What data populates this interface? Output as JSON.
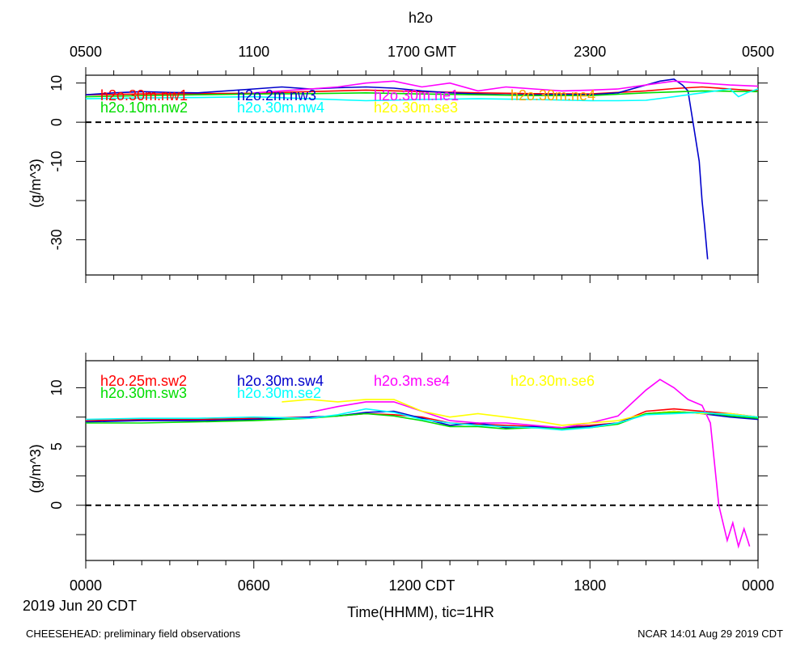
{
  "figure": {
    "title": "h2o",
    "top_axis_ticks": [
      "0500",
      "1100",
      "1700 GMT",
      "2300",
      "0500"
    ],
    "bottom_axis_ticks": [
      "0000",
      "0600",
      "1200 CDT",
      "1800",
      "0000"
    ],
    "date_label": "2019 Jun 20 CDT",
    "xlabel": "Time(HHMM), tic=1HR",
    "footer_left": "CHEESEHEAD: preliminary field observations",
    "footer_right": "NCAR 14:01 Aug 29 2019 CDT"
  },
  "colors": {
    "red": "#ff0000",
    "blue": "#0000cc",
    "magenta": "#ff00ff",
    "orange": "#ffa500",
    "green": "#00dd00",
    "cyan": "#00ffff",
    "yellow": "#ffff00"
  },
  "chart_data": [
    {
      "type": "line",
      "title": "h2o",
      "xlabel": "Time(HHMM), tic=1HR",
      "ylabel": "(g/m^3)",
      "xlim": [
        0,
        24
      ],
      "ylim": [
        -39,
        12
      ],
      "yticks": [
        10,
        0,
        -10,
        -30
      ],
      "ytick_labels": [
        "10",
        "0",
        "-10",
        "-30"
      ],
      "reference_line": 0,
      "series": [
        {
          "name": "h2o.30m.nw1",
          "color": "#ff0000",
          "x": [
            0,
            2,
            4,
            6,
            8,
            10,
            12,
            14,
            16,
            18,
            19,
            20,
            21,
            22,
            23,
            24
          ],
          "y": [
            7.0,
            7.2,
            7.3,
            7.4,
            7.8,
            8.2,
            7.8,
            7.5,
            7.3,
            7.2,
            7.6,
            8.0,
            8.6,
            9.0,
            8.5,
            8.0
          ]
        },
        {
          "name": "h2o.2m.nw3",
          "color": "#0000cc",
          "x": [
            0,
            1,
            2,
            3,
            4,
            5,
            6,
            7,
            8,
            9,
            10,
            11,
            12,
            13,
            14,
            15,
            16,
            17,
            18,
            19,
            20,
            20.5,
            21,
            21.3,
            21.5,
            21.7,
            21.9,
            22.0,
            22.1,
            22.2
          ],
          "y": [
            7.0,
            7.5,
            7.8,
            7.6,
            7.5,
            8.0,
            8.5,
            9.0,
            8.5,
            8.8,
            9.0,
            8.7,
            8.0,
            7.5,
            7.2,
            7.0,
            7.0,
            7.1,
            7.0,
            7.5,
            9.5,
            10.5,
            11.0,
            9.5,
            8.0,
            -1,
            -10,
            -20,
            -27,
            -35
          ]
        },
        {
          "name": "h2o.30m.ne1",
          "color": "#ff00ff",
          "x": [
            6,
            7,
            8,
            9,
            10,
            11,
            12,
            13,
            14,
            15,
            16,
            17,
            18,
            19,
            20,
            21,
            22,
            23,
            24
          ],
          "y": [
            7.5,
            8.0,
            8.5,
            9.0,
            10.0,
            10.5,
            9.0,
            10.0,
            8.0,
            9.0,
            8.5,
            8.0,
            8.2,
            8.5,
            9.5,
            10.5,
            10.0,
            9.5,
            9.2
          ]
        },
        {
          "name": "h2o.30m.ne4",
          "color": "#ffa500",
          "x": [],
          "y": []
        },
        {
          "name": "h2o.10m.nw2",
          "color": "#00dd00",
          "x": [
            0,
            2,
            4,
            6,
            8,
            10,
            12,
            14,
            16,
            18,
            20,
            22,
            24
          ],
          "y": [
            6.5,
            6.8,
            7.0,
            7.2,
            7.3,
            7.5,
            7.2,
            7.0,
            6.8,
            6.8,
            7.5,
            8.0,
            7.8
          ]
        },
        {
          "name": "h2o.30m.nw4",
          "color": "#00ffff",
          "x": [
            0,
            2,
            4,
            6,
            8,
            10,
            12,
            14,
            16,
            18,
            19,
            20,
            21,
            22,
            22.5,
            23,
            23.3,
            23.6,
            24
          ],
          "y": [
            6.0,
            6.2,
            6.3,
            6.5,
            6.0,
            5.5,
            5.8,
            6.0,
            5.8,
            5.5,
            5.5,
            5.6,
            6.5,
            7.5,
            8.0,
            8.5,
            6.5,
            7.5,
            8.5
          ]
        },
        {
          "name": "h2o.30m.se3",
          "color": "#ffff00",
          "x": [],
          "y": []
        }
      ]
    },
    {
      "type": "line",
      "title": "",
      "xlabel": "Time(HHMM), tic=1HR",
      "ylabel": "(g/m^3)",
      "xlim": [
        0,
        24
      ],
      "ylim": [
        -4.7,
        12.3
      ],
      "yticks": [
        10,
        5,
        0
      ],
      "ytick_labels": [
        "10",
        "5",
        "0"
      ],
      "reference_line": 0,
      "series": [
        {
          "name": "h2o.25m.sw2",
          "color": "#ff0000",
          "x": [
            0,
            2,
            4,
            6,
            8,
            9,
            10,
            11,
            12,
            13,
            14,
            15,
            16,
            17,
            18,
            19,
            20,
            21,
            22,
            23,
            24
          ],
          "y": [
            7.2,
            7.3,
            7.3,
            7.4,
            7.5,
            7.6,
            7.8,
            7.7,
            7.5,
            7.0,
            6.9,
            6.8,
            6.7,
            6.6,
            6.8,
            7.0,
            8.0,
            8.2,
            8.0,
            7.8,
            7.5
          ]
        },
        {
          "name": "h2o.30m.sw4",
          "color": "#0000cc",
          "x": [
            0,
            2,
            4,
            6,
            8,
            9,
            10,
            11,
            12,
            13,
            14,
            15,
            16,
            17,
            18,
            19,
            20,
            21,
            22,
            23,
            24
          ],
          "y": [
            7.1,
            7.2,
            7.2,
            7.3,
            7.5,
            7.6,
            7.9,
            8.0,
            7.4,
            6.8,
            7.0,
            6.6,
            6.7,
            6.6,
            6.7,
            7.0,
            7.8,
            8.0,
            7.8,
            7.5,
            7.3
          ]
        },
        {
          "name": "h2o.3m.se4",
          "color": "#ff00ff",
          "x": [
            8,
            9,
            10,
            11,
            12,
            13,
            14,
            15,
            16,
            17,
            18,
            19,
            20,
            20.5,
            21,
            21.5,
            22,
            22.3,
            22.6,
            22.9,
            23.1,
            23.3,
            23.5,
            23.7
          ],
          "y": [
            7.9,
            8.4,
            8.8,
            8.8,
            8.0,
            7.2,
            7.0,
            7.0,
            6.8,
            6.6,
            7.0,
            7.6,
            9.8,
            10.7,
            10.0,
            9.0,
            8.5,
            7.0,
            0.0,
            -3.0,
            -1.5,
            -3.5,
            -2.0,
            -3.5
          ]
        },
        {
          "name": "h2o.30m.se6",
          "color": "#ffff00",
          "x": [
            7,
            8,
            9,
            10,
            11,
            12,
            13,
            14,
            15,
            16,
            17,
            18,
            19,
            20,
            21,
            22,
            23,
            24
          ],
          "y": [
            8.8,
            9.0,
            8.8,
            9.0,
            9.0,
            8.0,
            7.5,
            7.8,
            7.5,
            7.2,
            6.8,
            7.0,
            7.2,
            7.8,
            8.0,
            7.8,
            7.8,
            7.5
          ]
        },
        {
          "name": "h2o.30m.sw3",
          "color": "#00dd00",
          "x": [
            0,
            2,
            4,
            6,
            8,
            9,
            10,
            11,
            12,
            13,
            14,
            15,
            16,
            17,
            18,
            19,
            20,
            21,
            22,
            23,
            24
          ],
          "y": [
            7.0,
            7.0,
            7.1,
            7.2,
            7.4,
            7.6,
            7.8,
            7.6,
            7.2,
            6.7,
            6.7,
            6.5,
            6.6,
            6.5,
            6.6,
            6.9,
            7.8,
            7.9,
            7.9,
            7.6,
            7.4
          ]
        },
        {
          "name": "h2o.30m.se2",
          "color": "#00ffff",
          "x": [
            0,
            2,
            4,
            6,
            8,
            9,
            10,
            11,
            12,
            13,
            14,
            15,
            16,
            17,
            18,
            19,
            20,
            21,
            22,
            23,
            24
          ],
          "y": [
            7.3,
            7.4,
            7.4,
            7.5,
            7.4,
            7.7,
            8.2,
            7.9,
            7.3,
            7.0,
            6.8,
            6.7,
            6.6,
            6.4,
            6.6,
            7.0,
            7.7,
            7.8,
            7.9,
            7.7,
            7.5
          ]
        }
      ]
    }
  ]
}
